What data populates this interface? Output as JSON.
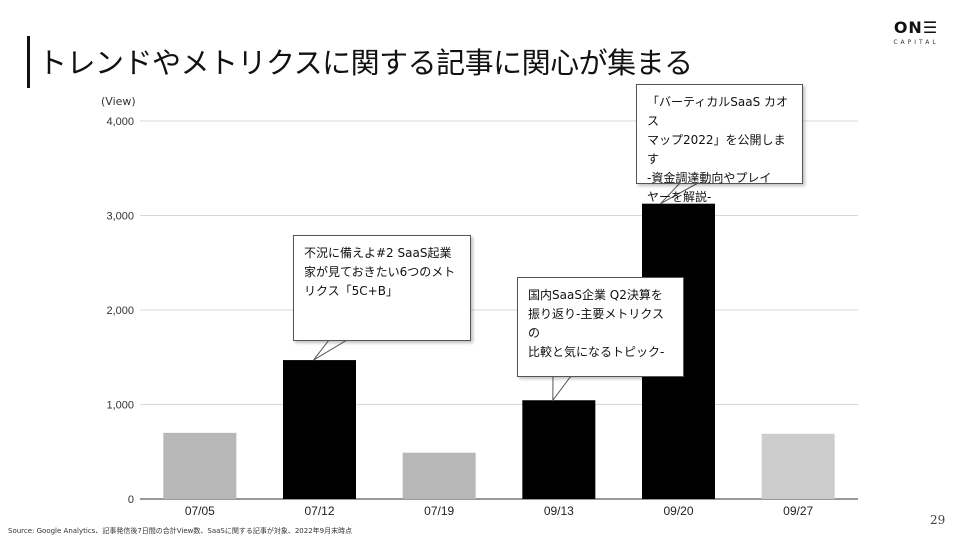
{
  "slide": {
    "title": "トレンドやメトリクスに関する記事に関心が集まる",
    "logo_main": "ON☰",
    "logo_sub": "CAPITAL",
    "source": "Source: Google Analytics、記事発信後7日間の合計View数、SaaSに関する記事が対象、2022年9月末時点",
    "page_number": "29"
  },
  "colors": {
    "highlight_bar": "#000000",
    "muted_bar": "#b7b7b7",
    "last_bar": "#cccccc",
    "grid": "#d9d9d9",
    "axis": "#333333"
  },
  "chart_data": {
    "type": "bar",
    "title": "",
    "xlabel": "",
    "ylabel": "(View)",
    "ylim": [
      0,
      4000
    ],
    "yticks": [
      0,
      1000,
      2000,
      3000,
      4000
    ],
    "ytick_labels": [
      "0",
      "1,000",
      "2,000",
      "3,000",
      "4,000"
    ],
    "categories": [
      "07/05",
      "07/12",
      "07/19",
      "09/13",
      "09/20",
      "09/27"
    ],
    "values": [
      700,
      1470,
      490,
      1045,
      3125,
      690
    ],
    "highlighted": [
      false,
      true,
      false,
      true,
      true,
      false
    ],
    "annotations": [
      {
        "category": "07/12",
        "text": "不況に備えよ#2 SaaS起業\n家が見ておきたい6つのメト\nリクス「5C+B」"
      },
      {
        "category": "09/13",
        "text": "国内SaaS企業 Q2決算を\n振り返り-主要メトリクスの\n比較と気になるトピック-"
      },
      {
        "category": "09/20",
        "text": "「バーティカルSaaS カオス\nマップ2022」を公開します\n-資金調達動向やプレイ\nヤーを解説-"
      }
    ]
  }
}
